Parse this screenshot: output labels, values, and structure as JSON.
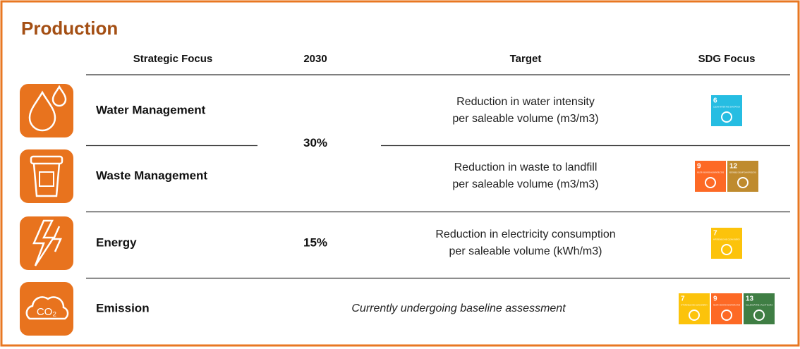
{
  "title": "Production",
  "table": {
    "headers": [
      "Strategic Focus",
      "2030",
      "Target",
      "SDG Focus"
    ],
    "blocks": [
      {
        "value": "30%",
        "rows": [
          {
            "focus": "Water Management",
            "target": [
              "Reduction in water intensity",
              "per saleable volume (m3/m3)"
            ],
            "sdgs": [
              {
                "number": "6",
                "label": "CLEAN WATER AND SANITATION",
                "color": "#26bde2"
              }
            ]
          },
          {
            "focus": "Waste Management",
            "target": [
              "Reduction in waste to landfill",
              "per saleable volume (m3/m3)"
            ],
            "sdgs": [
              {
                "number": "9",
                "label": "INDUSTRY, INNOVATION AND INFRASTRUCTURE",
                "color": "#fd6925"
              },
              {
                "number": "12",
                "label": "RESPONSIBLE CONSUMPTION AND PRODUCTION",
                "color": "#bf8b2e"
              }
            ]
          }
        ]
      },
      {
        "value": "15%",
        "rows": [
          {
            "focus": "Energy",
            "target": [
              "Reduction in electricity consumption",
              "per saleable volume (kWh/m3)"
            ],
            "sdgs": [
              {
                "number": "7",
                "label": "AFFORDABLE AND CLEAN ENERGY",
                "color": "#fcc30b"
              }
            ]
          }
        ]
      },
      {
        "note": "Currently undergoing baseline assessment",
        "rows": [
          {
            "focus": "Emission",
            "icon_label": "CO₂",
            "sdgs": [
              {
                "number": "7",
                "label": "AFFORDABLE AND CLEAN ENERGY",
                "color": "#fcc30b"
              },
              {
                "number": "9",
                "label": "INDUSTRY, INNOVATION AND INFRASTRUCTURE",
                "color": "#fd6925"
              },
              {
                "number": "13",
                "label": "CLIMATE ACTION",
                "color": "#3f7e44"
              }
            ]
          }
        ]
      }
    ]
  }
}
